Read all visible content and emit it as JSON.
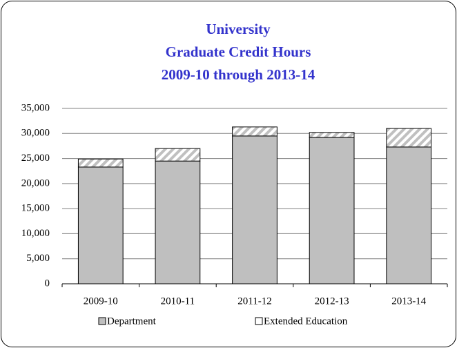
{
  "chart_data": {
    "type": "stacked_bar",
    "title": [
      "University",
      "Graduate Credit Hours",
      "2009-10 through 2013-14"
    ],
    "categories": [
      "2009-10",
      "2010-11",
      "2011-12",
      "2012-13",
      "2013-14"
    ],
    "series": [
      {
        "name": "Department",
        "color": "#bfbfbf",
        "values": [
          23300,
          24500,
          29500,
          29200,
          27300
        ]
      },
      {
        "name": "Extended Education",
        "color": "#ffffff",
        "hatch": "#c0c0c0",
        "values": [
          1600,
          2500,
          1800,
          1000,
          3700
        ]
      }
    ],
    "ylim": [
      0,
      35000
    ],
    "yticks": [
      0,
      {
        "value": 5000,
        "label": "5,000"
      },
      {
        "value": 10000,
        "label": "10,000"
      },
      {
        "value": 15000,
        "label": "15,000"
      },
      {
        "value": 20000,
        "label": "20,000"
      },
      {
        "value": 25000,
        "label": "25,000"
      },
      {
        "value": 30000,
        "label": "30,000"
      },
      {
        "value": 35000,
        "label": "35,000"
      }
    ],
    "grid": true,
    "legend": "bottom"
  }
}
